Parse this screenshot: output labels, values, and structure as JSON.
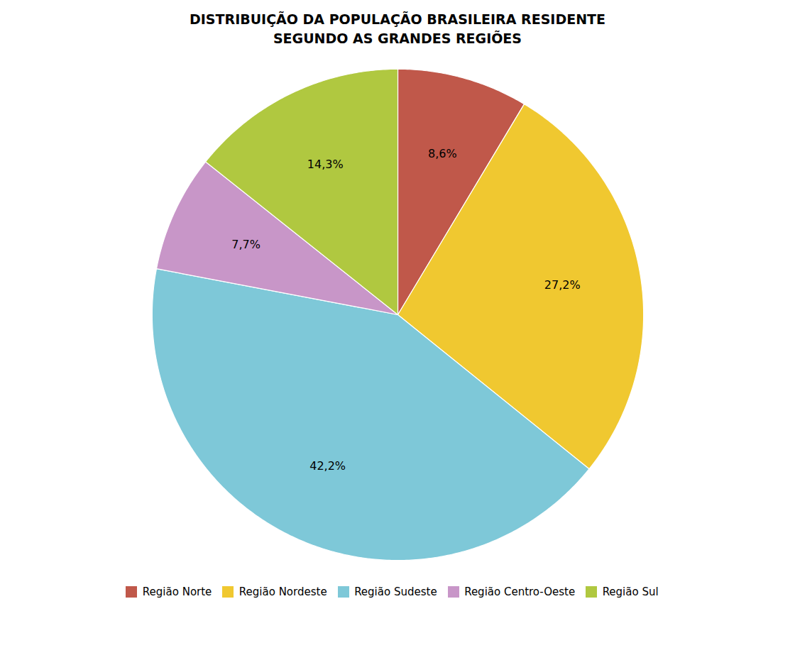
{
  "chart_data": {
    "type": "pie",
    "title": "DISTRIBUIÇÃO DA POPULAÇÃO BRASILEIRA RESIDENTE\nSEGUNDO AS GRANDES REGIÕES",
    "categories": [
      "Região Norte",
      "Região Nordeste",
      "Região Sudeste",
      "Região Centro-Oeste",
      "Região Sul"
    ],
    "values": [
      8.6,
      27.2,
      42.2,
      7.7,
      14.3
    ],
    "value_labels": [
      "8,6%",
      "27,2%",
      "42,2%",
      "7,7%",
      "14,3%"
    ],
    "colors": [
      "#c0584a",
      "#f0c830",
      "#7ec8d8",
      "#c896c8",
      "#b0c840"
    ],
    "data_labels": true,
    "legend": "bottom"
  }
}
